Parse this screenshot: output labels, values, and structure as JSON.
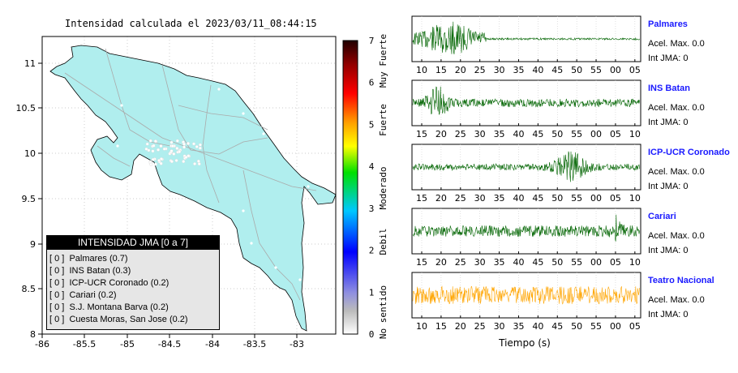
{
  "map": {
    "title": "Intensidad calculada el 2023/03/11_08:44:15",
    "x_ticks": [
      "-86",
      "-85.5",
      "-85",
      "-84.5",
      "-84",
      "-83.5",
      "-83"
    ],
    "y_ticks": [
      "11",
      "10.5",
      "10",
      "9.5",
      "9",
      "8.5",
      "8"
    ],
    "land_color": "#b0eeee",
    "legend_title": "INTENSIDAD JMA [0 a 7]",
    "legend_items": [
      "[ 0 ]  Palmares (0.7)",
      "[ 0 ]  INS Batan (0.3)",
      "[ 0 ]  ICP-UCR Coronado (0.2)",
      "[ 0 ]  Cariari (0.2)",
      "[ 0 ]  S.J. Montana Barva (0.2)",
      "[ 0 ]  Cuesta Moras, San Jose (0.2)"
    ]
  },
  "colorbar": {
    "ticks": [
      "0",
      "1",
      "2",
      "3",
      "4",
      "5",
      "6",
      "7"
    ],
    "labels": [
      "No sentido",
      "Debil",
      "Moderado",
      "Fuerte",
      "Muy Fuerte"
    ]
  },
  "waveforms": {
    "xlabel": "Tiempo (s)",
    "stations": [
      {
        "name": "Palmares",
        "accel": "Acel. Max. 0.0",
        "int": "Int JMA: 0",
        "color": "#006400",
        "ticks": [
          "10",
          "15",
          "20",
          "25",
          "30",
          "35",
          "40",
          "45",
          "50",
          "55",
          "00",
          "05"
        ]
      },
      {
        "name": "INS Batan",
        "accel": "Acel. Max. 0.0",
        "int": "Int JMA: 0",
        "color": "#006400",
        "ticks": [
          "15",
          "20",
          "25",
          "30",
          "35",
          "40",
          "45",
          "50",
          "55",
          "00",
          "05",
          "10"
        ]
      },
      {
        "name": "ICP-UCR Coronado",
        "accel": "Acel. Max. 0.0",
        "int": "Int JMA: 0",
        "color": "#006400",
        "ticks": [
          "15",
          "20",
          "25",
          "30",
          "35",
          "40",
          "45",
          "50",
          "55",
          "00",
          "05",
          "10"
        ]
      },
      {
        "name": "Cariari",
        "accel": "Acel. Max. 0.0",
        "int": "Int JMA: 0",
        "color": "#006400",
        "ticks": [
          "15",
          "20",
          "25",
          "30",
          "35",
          "40",
          "45",
          "50",
          "55",
          "00",
          "05",
          "10"
        ]
      },
      {
        "name": "Teatro Nacional",
        "accel": "Acel. Max. 0.0",
        "int": "Int JMA: 0",
        "color": "#ffa500",
        "ticks": [
          "10",
          "15",
          "20",
          "25",
          "30",
          "35",
          "40",
          "45",
          "50",
          "55",
          "00",
          "05"
        ]
      }
    ]
  },
  "chart_data": [
    {
      "type": "map",
      "title": "Intensidad calculada el 2023/03/11_08:44:15",
      "xlim": [
        -86,
        -82.6
      ],
      "ylim": [
        8,
        11.3
      ],
      "legend": "bottom-left"
    },
    {
      "type": "colorbar",
      "range": [
        0,
        7
      ]
    },
    {
      "type": "line",
      "xlabel": "Tiempo (s)",
      "series": [
        {
          "name": "Palmares",
          "peak_accel": 0.0,
          "jma": 0
        },
        {
          "name": "INS Batan",
          "peak_accel": 0.0,
          "jma": 0
        },
        {
          "name": "ICP-UCR Coronado",
          "peak_accel": 0.0,
          "jma": 0
        },
        {
          "name": "Cariari",
          "peak_accel": 0.0,
          "jma": 0
        },
        {
          "name": "Teatro Nacional",
          "peak_accel": 0.0,
          "jma": 0
        }
      ]
    }
  ]
}
